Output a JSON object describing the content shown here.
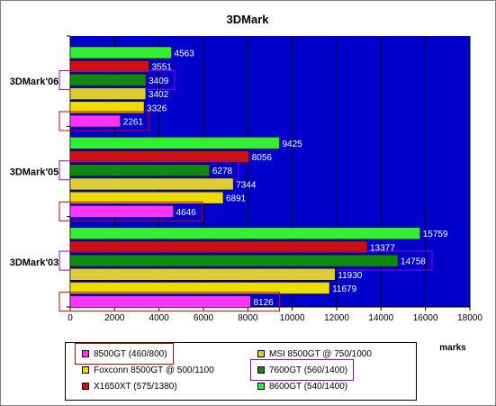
{
  "chart_data": {
    "type": "bar",
    "orientation": "horizontal",
    "title": "3DMark",
    "xlabel": "marks",
    "ylabel": "",
    "xlim": [
      0,
      18000
    ],
    "xticks": [
      0,
      2000,
      4000,
      6000,
      8000,
      10000,
      12000,
      14000,
      16000,
      18000
    ],
    "grid": true,
    "legend_position": "bottom",
    "plot_background": "#0000cc",
    "categories": [
      "3DMark'06",
      "3DMark'05",
      "3DMark'03"
    ],
    "series": [
      {
        "name": "8600GT (540/1400)",
        "color": "#33ee33",
        "values": [
          4563,
          9425,
          15759
        ]
      },
      {
        "name": "X1650XT (575/1380)",
        "color": "#cc1111",
        "values": [
          3551,
          8056,
          13377
        ]
      },
      {
        "name": "7600GT (560/1400)",
        "color": "#118811",
        "values": [
          3409,
          6278,
          14758
        ]
      },
      {
        "name": "MSI 8500GT @ 750/1000",
        "color": "#ddcc33",
        "values": [
          3402,
          7344,
          11930
        ]
      },
      {
        "name": "Foxconn 8500GT @ 500/1100",
        "color": "#eedd00",
        "values": [
          3326,
          6891,
          11679
        ]
      },
      {
        "name": "8500GT (460/800)",
        "color": "#ff33ff",
        "values": [
          2261,
          4646,
          8126
        ]
      }
    ],
    "highlights": [
      {
        "series": "8500GT (460/800)",
        "color": "#cc0000"
      },
      {
        "series": "7600GT (560/1400)",
        "color": "#9900cc"
      }
    ]
  },
  "legend": {
    "items": [
      {
        "label": "8500GT (460/800)",
        "color": "#ff33ff",
        "highlight": "#cc0000"
      },
      {
        "label": "MSI 8500GT @ 750/1000",
        "color": "#ddcc33",
        "highlight": ""
      },
      {
        "label": "Foxconn 8500GT @ 500/1100",
        "color": "#eedd00",
        "highlight": ""
      },
      {
        "label": "7600GT (560/1400)",
        "color": "#118811",
        "highlight": "#9900cc"
      },
      {
        "label": "X1650XT (575/1380)",
        "color": "#cc1111",
        "highlight": ""
      },
      {
        "label": "8600GT (540/1400)",
        "color": "#33ee33",
        "highlight": ""
      }
    ]
  }
}
